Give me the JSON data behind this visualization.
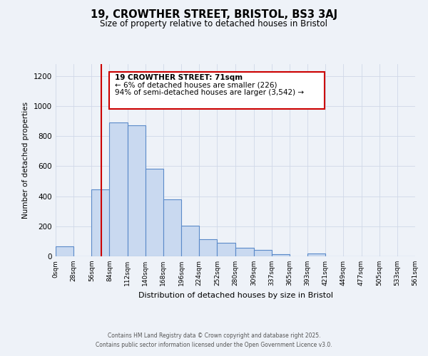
{
  "title": "19, CROWTHER STREET, BRISTOL, BS3 3AJ",
  "subtitle": "Size of property relative to detached houses in Bristol",
  "xlabel": "Distribution of detached houses by size in Bristol",
  "ylabel": "Number of detached properties",
  "bin_edges": [
    0,
    28,
    56,
    84,
    112,
    140,
    168,
    196,
    224,
    252,
    280,
    309,
    337,
    365,
    393,
    421,
    449,
    477,
    505,
    533,
    561
  ],
  "bin_labels": [
    "0sqm",
    "28sqm",
    "56sqm",
    "84sqm",
    "112sqm",
    "140sqm",
    "168sqm",
    "196sqm",
    "224sqm",
    "252sqm",
    "280sqm",
    "309sqm",
    "337sqm",
    "365sqm",
    "393sqm",
    "421sqm",
    "449sqm",
    "477sqm",
    "505sqm",
    "533sqm",
    "561sqm"
  ],
  "bar_heights": [
    65,
    0,
    445,
    893,
    872,
    585,
    380,
    205,
    112,
    88,
    55,
    45,
    15,
    0,
    18,
    0,
    0,
    0,
    0,
    0
  ],
  "bar_face_color": "#c9d9f0",
  "bar_edge_color": "#5b8ac9",
  "property_line_x": 71,
  "property_line_color": "#cc0000",
  "annotation_text_line1": "19 CROWTHER STREET: 71sqm",
  "annotation_text_line2": "← 6% of detached houses are smaller (226)",
  "annotation_text_line3": "94% of semi-detached houses are larger (3,542) →",
  "annotation_box_color": "#cc0000",
  "annotation_fill_color": "#ffffff",
  "ylim": [
    0,
    1280
  ],
  "yticks": [
    0,
    200,
    400,
    600,
    800,
    1000,
    1200
  ],
  "grid_color": "#d0d8e8",
  "background_color": "#eef2f8",
  "footer_line1": "Contains HM Land Registry data © Crown copyright and database right 2025.",
  "footer_line2": "Contains public sector information licensed under the Open Government Licence v3.0."
}
